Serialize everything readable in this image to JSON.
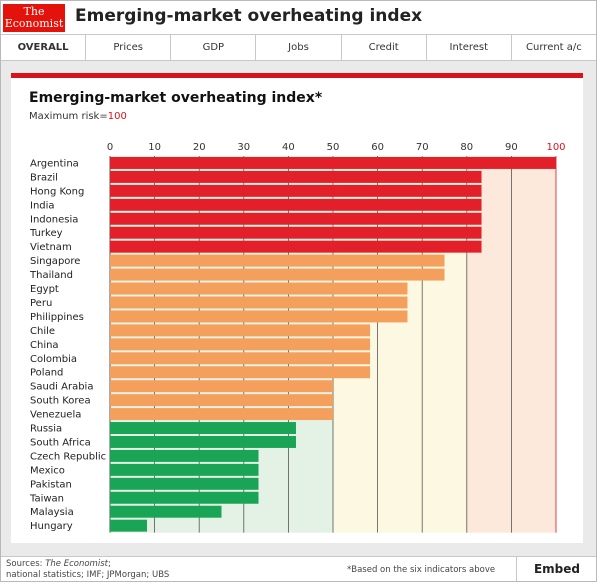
{
  "header": {
    "logo_line1": "The",
    "logo_line2": "Economist",
    "title": "Emerging-market overheating index"
  },
  "tabs": [
    "OVERALL",
    "Prices",
    "GDP",
    "Jobs",
    "Credit",
    "Interest",
    "Current a/c"
  ],
  "subtitle": {
    "prefix": "Maximum risk=",
    "value": "100"
  },
  "footer": {
    "sources_prefix": "Sources: ",
    "sources_italic": "The Economist",
    "sources_suffix": ";",
    "sources_line2": "national statistics; IMF; JPMorgan; UBS",
    "note": "*Based on the six indicators above",
    "embed_label": "Embed"
  },
  "colors": {
    "high": "#e3202a",
    "medium": "#f4a05c",
    "low": "#1aa556",
    "zone_low": "#e3f2e5",
    "zone_medium": "#fdf8e1",
    "zone_high": "#fde8dc"
  },
  "chart_data": {
    "type": "bar",
    "orientation": "horizontal",
    "title": "Emerging-market overheating index*",
    "subtitle": "Maximum risk=100",
    "xlim": [
      0,
      100
    ],
    "xticks": [
      0,
      10,
      20,
      30,
      40,
      50,
      60,
      70,
      80,
      90,
      100
    ],
    "grid": true,
    "zones": [
      {
        "from": 0,
        "to": 50,
        "level": "low"
      },
      {
        "from": 50,
        "to": 80,
        "level": "medium"
      },
      {
        "from": 80,
        "to": 100,
        "level": "high"
      }
    ],
    "categories": [
      "Argentina",
      "Brazil",
      "Hong Kong",
      "India",
      "Indonesia",
      "Turkey",
      "Vietnam",
      "Singapore",
      "Thailand",
      "Egypt",
      "Peru",
      "Philippines",
      "Chile",
      "China",
      "Colombia",
      "Poland",
      "Saudi Arabia",
      "South Korea",
      "Venezuela",
      "Russia",
      "South Africa",
      "Czech Republic",
      "Mexico",
      "Pakistan",
      "Taiwan",
      "Malaysia",
      "Hungary"
    ],
    "values": [
      100,
      83.3,
      83.3,
      83.3,
      83.3,
      83.3,
      83.3,
      75,
      75,
      66.7,
      66.7,
      66.7,
      58.3,
      58.3,
      58.3,
      58.3,
      50,
      50,
      50,
      41.7,
      41.7,
      33.3,
      33.3,
      33.3,
      33.3,
      25,
      8.3
    ],
    "levels": [
      "high",
      "high",
      "high",
      "high",
      "high",
      "high",
      "high",
      "medium",
      "medium",
      "medium",
      "medium",
      "medium",
      "medium",
      "medium",
      "medium",
      "medium",
      "medium",
      "medium",
      "medium",
      "low",
      "low",
      "low",
      "low",
      "low",
      "low",
      "low",
      "low"
    ]
  }
}
